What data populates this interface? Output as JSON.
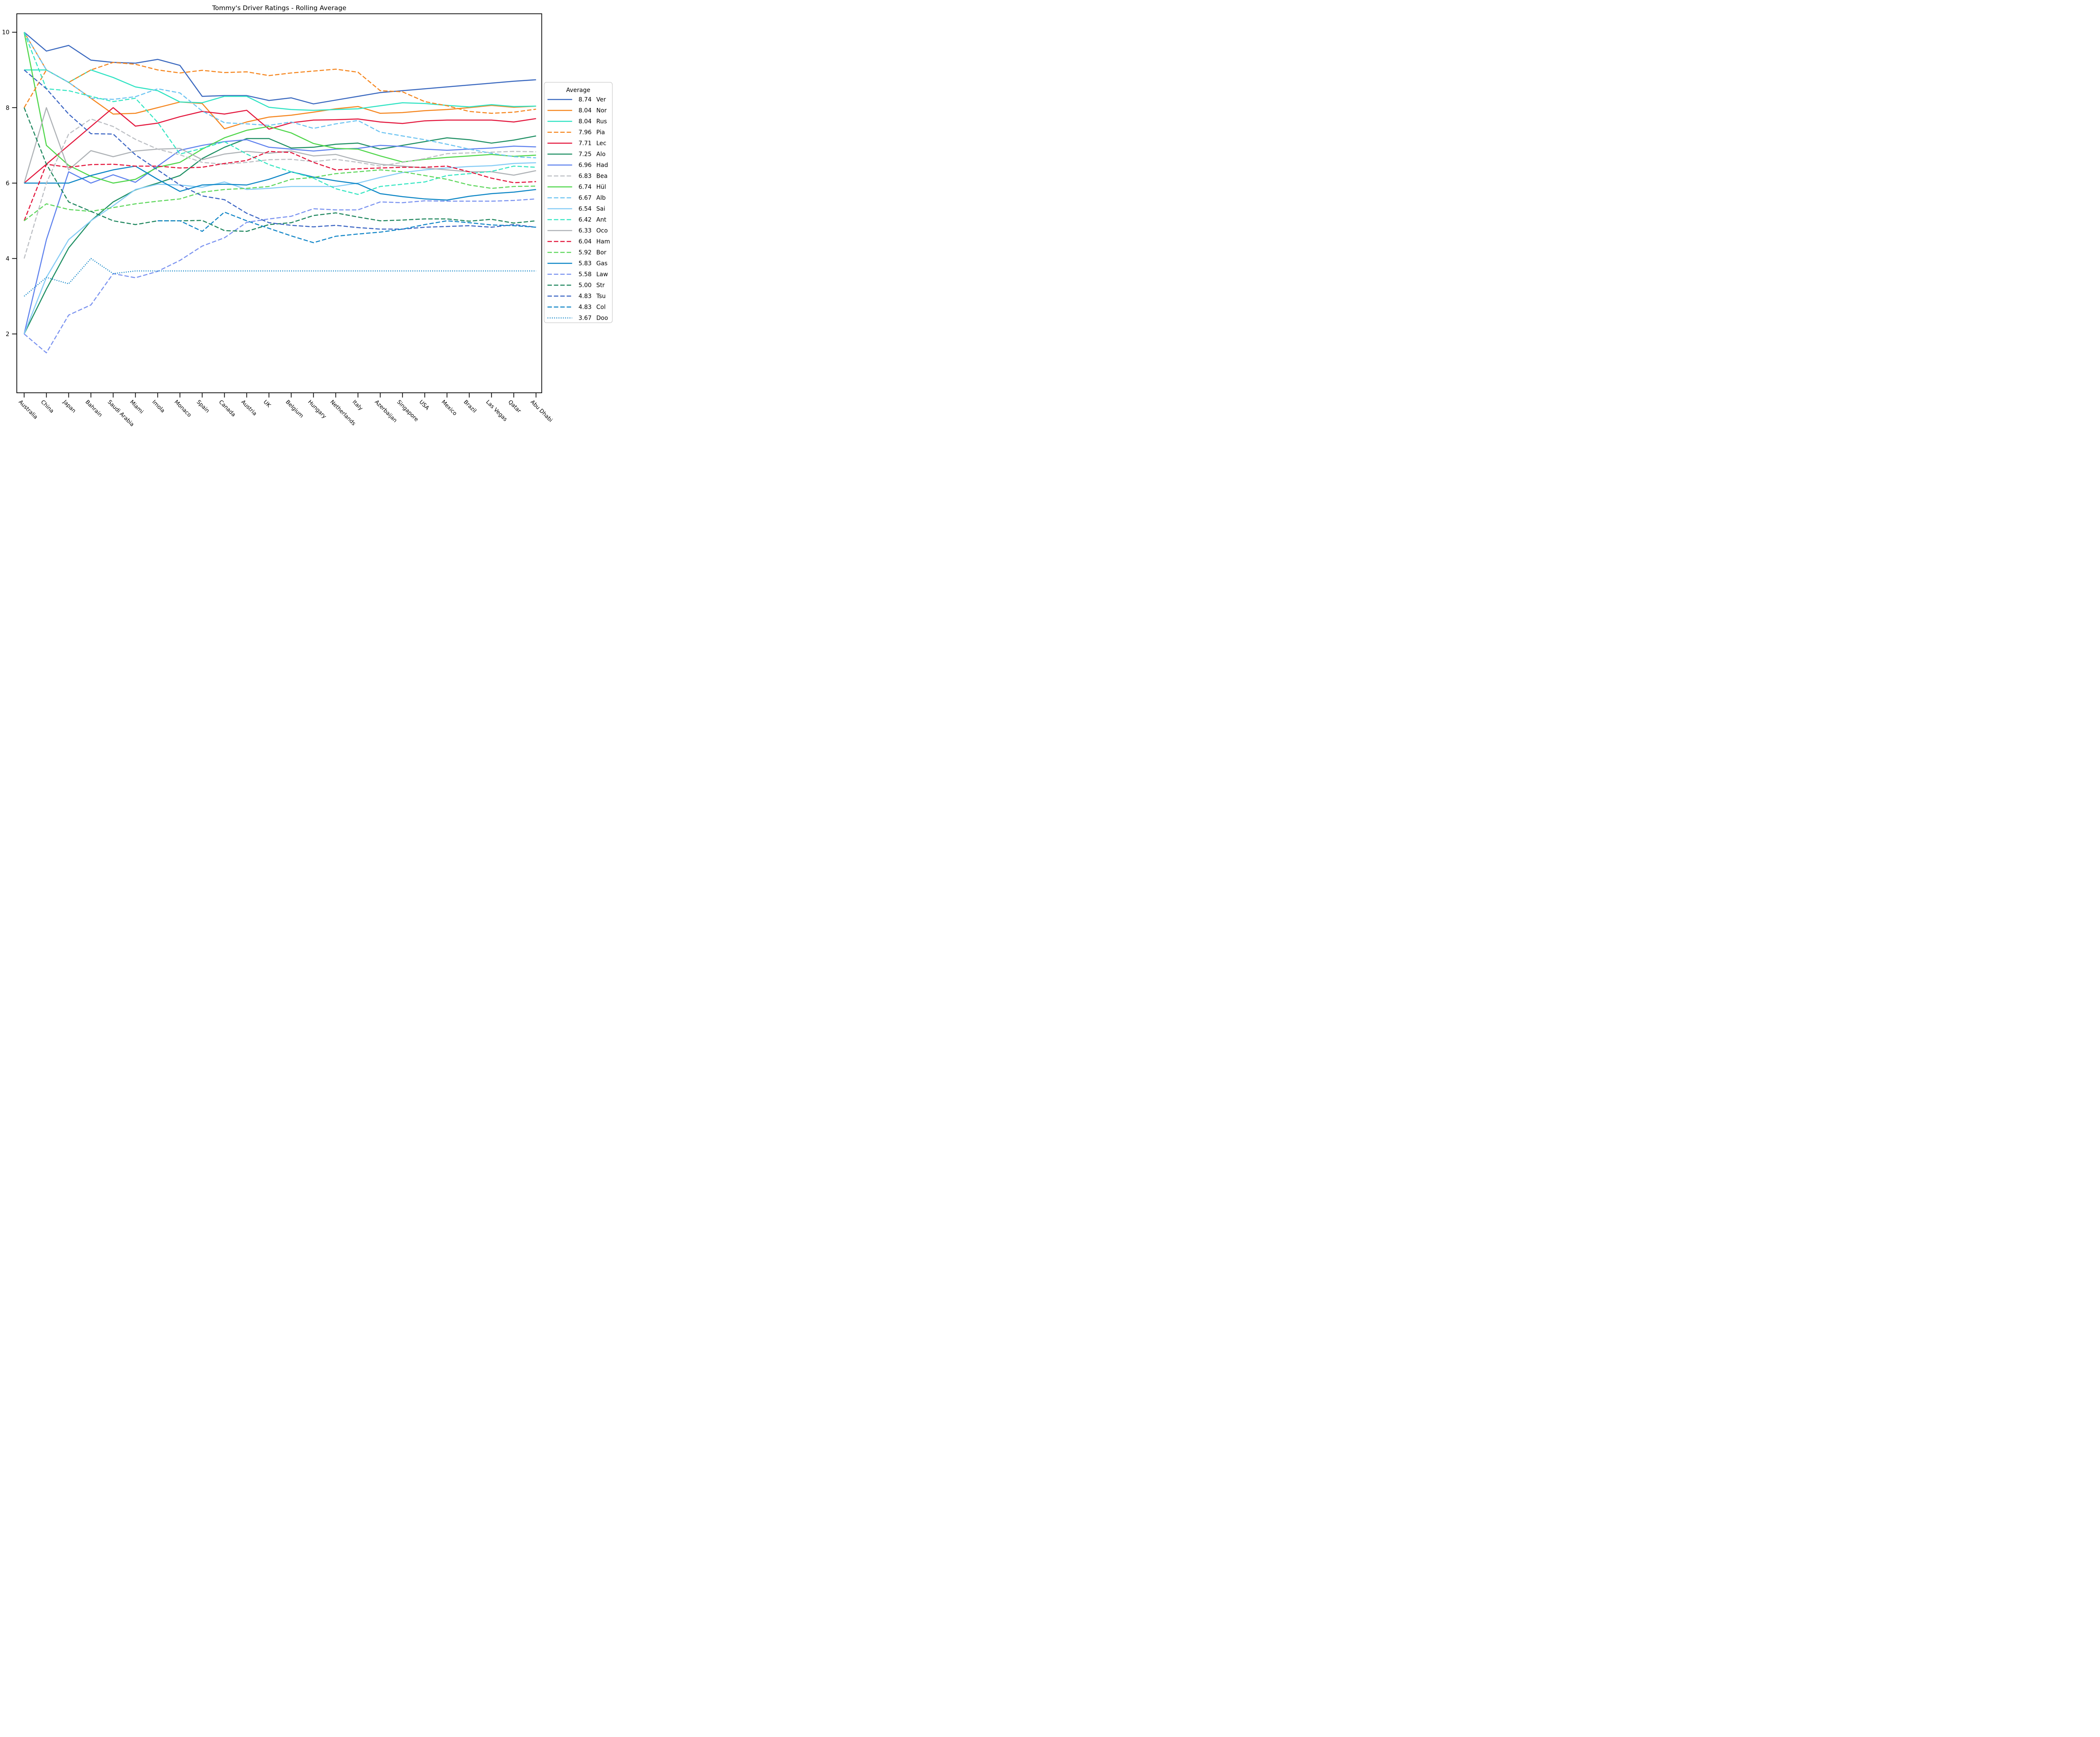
{
  "title": "Tommy's Driver Ratings - Rolling Average",
  "chart_data": {
    "type": "line",
    "title": "Tommy's Driver Ratings - Rolling Average",
    "legend_title": "Average",
    "grid": false,
    "legend_position": "right",
    "ylim": [
      0.44,
      10.49
    ],
    "yticks": [
      2,
      4,
      6,
      8,
      10
    ],
    "x_categories": [
      "Australia",
      "China",
      "Japan",
      "Bahrain",
      "Saudi Arabia",
      "Miami",
      "Imola",
      "Monaco",
      "Spain",
      "Canada",
      "Austria",
      "UK",
      "Belgium",
      "Hungary",
      "Netherlands",
      "Italy",
      "Azerbaijan",
      "Singapore",
      "USA",
      "Mexico",
      "Brazil",
      "Las Vegas",
      "Qatar",
      "Abu Dhabi"
    ],
    "series": [
      {
        "label": "Ver",
        "average": "8.74",
        "color": "#3a68bf",
        "style": "solid",
        "values": [
          10,
          9.5,
          9.65,
          9.26,
          9.2,
          9.18,
          9.28,
          9.12,
          8.3,
          8.32,
          8.32,
          8.19,
          8.26,
          8.1,
          8.2,
          8.3,
          8.4,
          8.45,
          8.5,
          8.55,
          8.6,
          8.65,
          8.7,
          8.74
        ]
      },
      {
        "label": "Nor",
        "average": "8.04",
        "color": "#f5861f",
        "style": "solid",
        "values": [
          10,
          9.0,
          8.67,
          8.25,
          7.83,
          7.85,
          8.0,
          8.15,
          8.11,
          7.44,
          7.62,
          7.75,
          7.8,
          7.88,
          7.97,
          8.03,
          7.85,
          7.87,
          7.92,
          7.95,
          8.0,
          8.06,
          8.01,
          8.04
        ]
      },
      {
        "label": "Rus",
        "average": "8.04",
        "color": "#2fe3c3",
        "style": "solid",
        "values": [
          9,
          9,
          8.67,
          9.0,
          8.8,
          8.55,
          8.45,
          8.15,
          8.13,
          8.3,
          8.3,
          8.01,
          7.95,
          7.93,
          7.95,
          7.97,
          8.05,
          8.13,
          8.11,
          8.06,
          8.02,
          8.08,
          8.03,
          8.04
        ]
      },
      {
        "label": "Pia",
        "average": "7.96",
        "color": "#f5861f",
        "style": "dashed",
        "values": [
          8,
          9,
          8.67,
          9.0,
          9.2,
          9.15,
          9.0,
          8.92,
          8.99,
          8.93,
          8.95,
          8.85,
          8.92,
          8.97,
          9.02,
          8.94,
          8.45,
          8.42,
          8.16,
          8.05,
          7.9,
          7.85,
          7.88,
          7.96
        ]
      },
      {
        "label": "Lec",
        "average": "7.71",
        "color": "#e3173d",
        "style": "solid",
        "values": [
          6,
          6.5,
          7.0,
          7.5,
          8.0,
          7.51,
          7.59,
          7.76,
          7.9,
          7.83,
          7.93,
          7.43,
          7.6,
          7.67,
          7.68,
          7.7,
          7.62,
          7.58,
          7.65,
          7.67,
          7.67,
          7.67,
          7.62,
          7.71
        ]
      },
      {
        "label": "Alo",
        "average": "7.25",
        "color": "#1e8f63",
        "style": "solid",
        "values": [
          2.0,
          3.19,
          4.28,
          5.0,
          5.5,
          5.82,
          6.0,
          6.2,
          6.65,
          6.95,
          7.18,
          7.18,
          6.93,
          6.95,
          7.03,
          7.06,
          6.9,
          7.0,
          7.1,
          7.2,
          7.15,
          7.06,
          7.14,
          7.25
        ]
      },
      {
        "label": "Had",
        "average": "6.96",
        "color": "#5f82ee",
        "style": "solid",
        "values": [
          2.0,
          4.5,
          6.3,
          6.0,
          6.22,
          6.02,
          6.45,
          6.87,
          7.0,
          7.1,
          7.15,
          6.95,
          6.9,
          6.85,
          6.9,
          6.92,
          7.0,
          6.97,
          6.9,
          6.87,
          6.9,
          6.93,
          6.98,
          6.96
        ]
      },
      {
        "label": "Bea",
        "average": "6.83",
        "color": "#bcbfc4",
        "style": "dashed",
        "values": [
          4.0,
          6.0,
          7.3,
          7.7,
          7.5,
          7.16,
          6.9,
          6.75,
          6.55,
          6.5,
          6.55,
          6.62,
          6.63,
          6.57,
          6.63,
          6.55,
          6.45,
          6.55,
          6.65,
          6.78,
          6.8,
          6.82,
          6.84,
          6.83
        ]
      },
      {
        "label": "Hül",
        "average": "6.74",
        "color": "#4fd64a",
        "style": "solid",
        "values": [
          10,
          7.0,
          6.47,
          6.18,
          6.0,
          6.1,
          6.42,
          6.55,
          6.9,
          7.2,
          7.4,
          7.5,
          7.33,
          7.05,
          6.92,
          6.9,
          6.72,
          6.56,
          6.63,
          6.68,
          6.72,
          6.76,
          6.71,
          6.74
        ]
      },
      {
        "label": "Alb",
        "average": "6.67",
        "color": "#6dc4f2",
        "style": "dashed",
        "values": [
          10,
          9.0,
          8.67,
          8.25,
          8.22,
          8.29,
          8.5,
          8.39,
          7.91,
          7.6,
          7.57,
          7.53,
          7.62,
          7.45,
          7.57,
          7.66,
          7.35,
          7.25,
          7.15,
          7.03,
          6.9,
          6.79,
          6.7,
          6.67
        ]
      },
      {
        "label": "Sai",
        "average": "6.54",
        "color": "#85ccf6",
        "style": "solid",
        "values": [
          2.0,
          3.5,
          4.5,
          5.0,
          5.4,
          5.83,
          5.97,
          5.95,
          5.89,
          6.03,
          5.83,
          5.86,
          5.91,
          5.91,
          5.91,
          6.0,
          6.15,
          6.28,
          6.35,
          6.4,
          6.44,
          6.46,
          6.52,
          6.54
        ]
      },
      {
        "label": "Ant",
        "average": "6.42",
        "color": "#37e6c3",
        "style": "dashed",
        "values": [
          10,
          8.5,
          8.45,
          8.3,
          8.16,
          8.25,
          7.61,
          6.77,
          6.92,
          7.1,
          6.77,
          6.49,
          6.3,
          6.13,
          5.85,
          5.7,
          5.91,
          5.97,
          6.03,
          6.2,
          6.25,
          6.31,
          6.45,
          6.42
        ]
      },
      {
        "label": "Oco",
        "average": "6.33",
        "color": "#aeb2b6",
        "style": "solid",
        "values": [
          6.0,
          8.0,
          6.35,
          6.86,
          6.7,
          6.85,
          6.9,
          6.92,
          6.62,
          6.77,
          6.84,
          6.79,
          6.85,
          6.72,
          6.76,
          6.6,
          6.5,
          6.45,
          6.4,
          6.35,
          6.3,
          6.3,
          6.21,
          6.33
        ]
      },
      {
        "label": "Ham",
        "average": "6.04",
        "color": "#e3173d",
        "style": "dashed",
        "values": [
          5.0,
          6.5,
          6.42,
          6.49,
          6.5,
          6.45,
          6.45,
          6.4,
          6.42,
          6.52,
          6.6,
          6.84,
          6.81,
          6.55,
          6.35,
          6.38,
          6.4,
          6.42,
          6.42,
          6.45,
          6.3,
          6.13,
          6.01,
          6.04
        ]
      },
      {
        "label": "Bor",
        "average": "5.92",
        "color": "#5fd75e",
        "style": "dashed",
        "values": [
          5.0,
          5.45,
          5.3,
          5.25,
          5.35,
          5.45,
          5.52,
          5.58,
          5.76,
          5.83,
          5.86,
          5.91,
          6.1,
          6.15,
          6.25,
          6.3,
          6.35,
          6.3,
          6.2,
          6.1,
          5.95,
          5.86,
          5.91,
          5.92
        ]
      },
      {
        "label": "Gas",
        "average": "5.83",
        "color": "#0d86c6",
        "style": "solid",
        "values": [
          6,
          6,
          6,
          6.2,
          6.35,
          6.45,
          6.1,
          5.78,
          5.95,
          5.97,
          5.95,
          6.1,
          6.3,
          6.16,
          6.06,
          5.98,
          5.72,
          5.64,
          5.58,
          5.55,
          5.65,
          5.72,
          5.76,
          5.83
        ]
      },
      {
        "label": "Law",
        "average": "5.58",
        "color": "#7b93f0",
        "style": "dashed",
        "values": [
          2.0,
          1.5,
          2.5,
          2.77,
          3.6,
          3.49,
          3.66,
          3.95,
          4.33,
          4.55,
          4.96,
          5.05,
          5.12,
          5.32,
          5.29,
          5.29,
          5.5,
          5.48,
          5.53,
          5.52,
          5.52,
          5.52,
          5.54,
          5.58
        ]
      },
      {
        "label": "Str",
        "average": "5.00",
        "color": "#20875f",
        "style": "dashed",
        "values": [
          8,
          6.5,
          5.5,
          5.25,
          5.0,
          4.9,
          5.0,
          5.0,
          5.01,
          4.74,
          4.72,
          4.9,
          4.95,
          5.14,
          5.21,
          5.1,
          5.0,
          5.02,
          5.05,
          5.05,
          4.99,
          5.04,
          4.94,
          5.0
        ]
      },
      {
        "label": "Tsu",
        "average": "4.83",
        "color": "#3d66c4",
        "style": "dashed",
        "values": [
          9,
          8.5,
          7.83,
          7.31,
          7.3,
          6.75,
          6.35,
          5.95,
          5.66,
          5.56,
          5.2,
          4.95,
          4.88,
          4.84,
          4.88,
          4.82,
          4.78,
          4.78,
          4.83,
          4.85,
          4.87,
          4.83,
          4.9,
          4.83
        ]
      },
      {
        "label": "Col",
        "average": "4.83",
        "color": "#1487c8",
        "style": "dashed",
        "values": [
          null,
          null,
          null,
          null,
          null,
          null,
          5.0,
          5.0,
          4.72,
          5.23,
          5.0,
          4.8,
          4.6,
          4.42,
          4.59,
          4.65,
          4.7,
          4.78,
          4.9,
          5.0,
          4.95,
          4.89,
          4.87,
          4.83
        ]
      },
      {
        "label": "Doo",
        "average": "3.67",
        "color": "#1487c8",
        "style": "dotted",
        "values": [
          3.0,
          3.5,
          3.33,
          4.0,
          3.6,
          3.67,
          3.67,
          3.67,
          3.67,
          3.67,
          3.67,
          3.67,
          3.67,
          3.67,
          3.67,
          3.67,
          3.67,
          3.67,
          3.67,
          3.67,
          3.67,
          3.67,
          3.67,
          3.67
        ]
      }
    ]
  }
}
